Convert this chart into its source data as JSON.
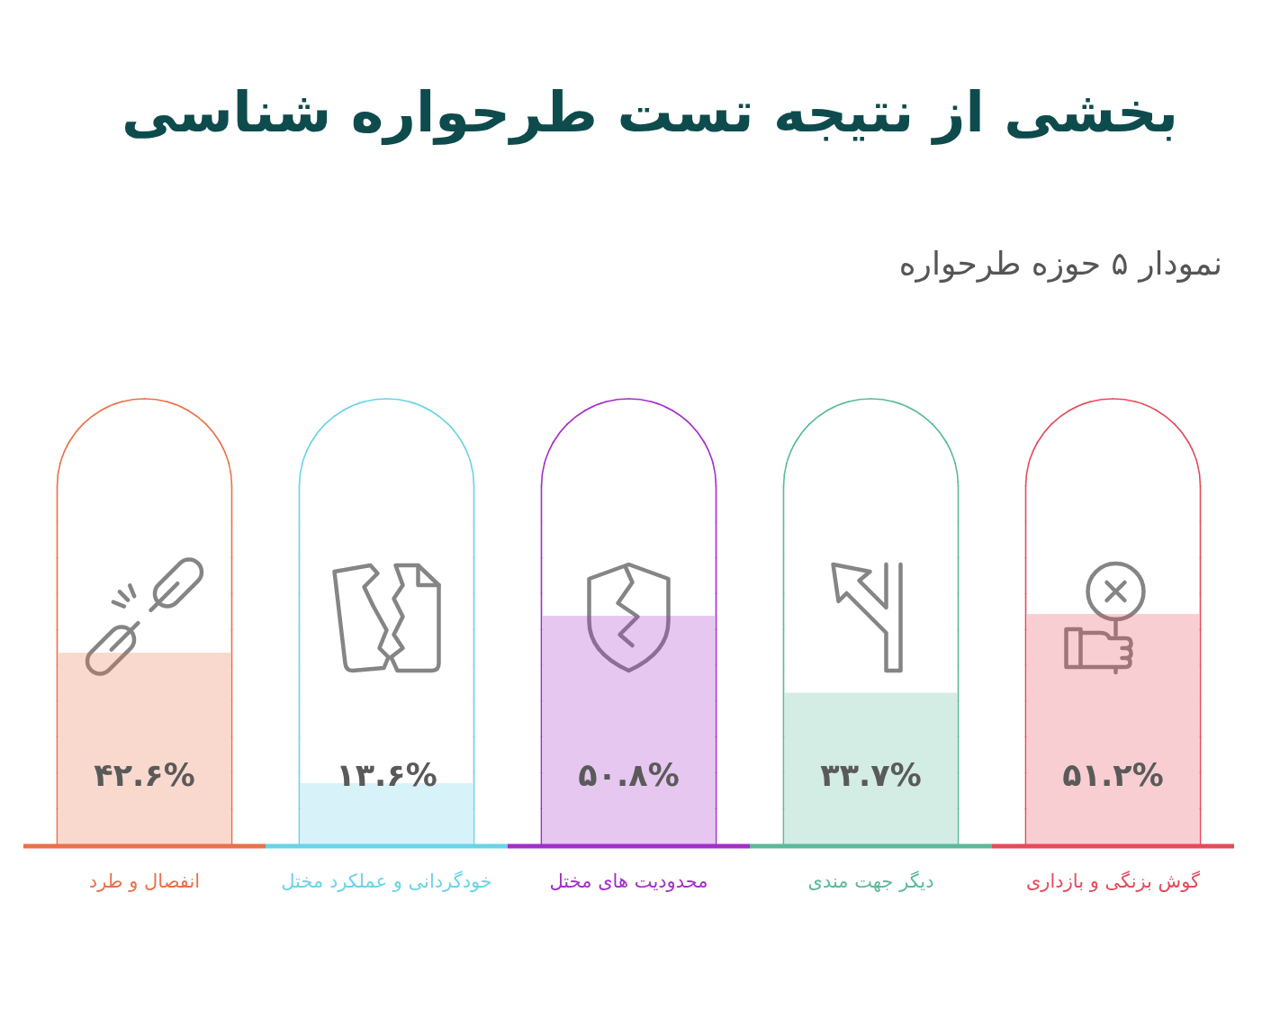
{
  "chart_data": {
    "type": "bar",
    "title": "بخشی از نتیجه تست طرحواره شناسی",
    "subtitle": "نمودار ۵ حوزه طرحواره",
    "categories": [
      "انفصال و طرد",
      "خودگردانی و عملکرد مختل",
      "محدودیت های مختل",
      "دیگر جهت مندی",
      "گوش بزنگی و بازداری"
    ],
    "values": [
      42.6,
      13.6,
      50.8,
      33.7,
      51.2
    ],
    "value_labels": [
      "۴۲.۶%",
      "۱۳.۶%",
      "۵۰.۸%",
      "۳۳.۷%",
      "۵۱.۲%"
    ],
    "colors": [
      "#e8714a",
      "#6ad3e8",
      "#a22fc9",
      "#5bb99b",
      "#e54b5b"
    ],
    "tick_labels": "x"
  }
}
